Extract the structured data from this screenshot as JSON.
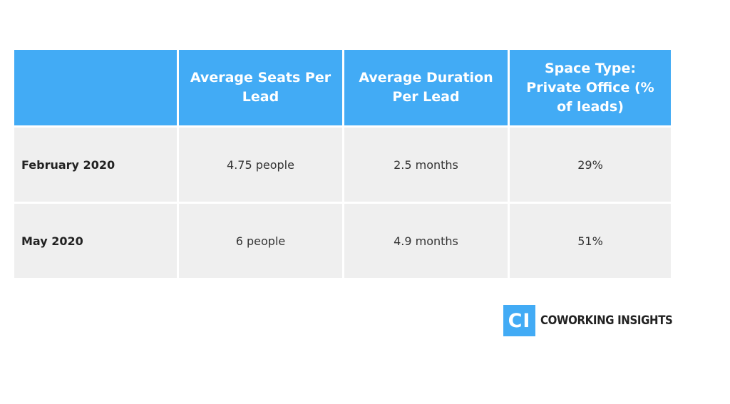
{
  "table": {
    "headers": [
      "",
      "Average Seats Per Lead",
      "Average Duration Per Lead",
      "Space Type: Private Office (% of leads)"
    ],
    "rows": [
      {
        "label": "February 2020",
        "cells": [
          "4.75 people",
          "2.5 months",
          "29%"
        ]
      },
      {
        "label": "May 2020",
        "cells": [
          "6 people",
          "4.9 months",
          "51%"
        ]
      }
    ]
  },
  "brand": {
    "mark": "CI",
    "name": "COWORKING INSIGHTS",
    "accent_color": "#42abf5"
  }
}
